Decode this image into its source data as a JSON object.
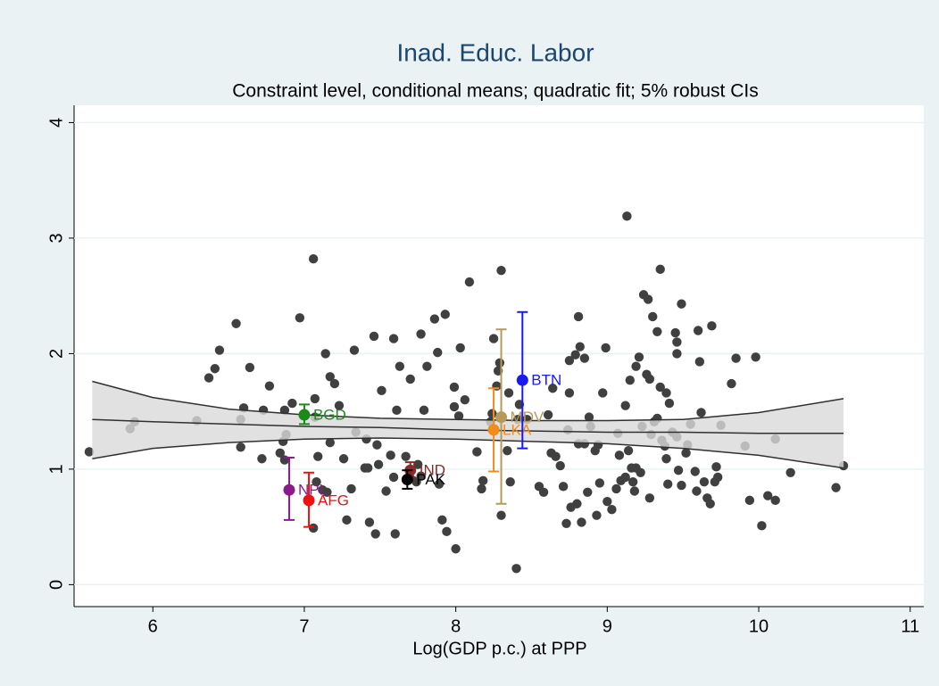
{
  "chart_data": {
    "type": "scatter",
    "title": "Inad. Educ. Labor",
    "subtitle": "Constraint level, conditional means; quadratic fit; 5% robust CIs",
    "xlabel": "Log(GDP p.c.) at PPP",
    "xlim": [
      5.48,
      11.09
    ],
    "ylim": [
      -0.19,
      4.15
    ],
    "xticks": [
      6,
      7,
      8,
      9,
      10,
      11
    ],
    "yticks": [
      0,
      1,
      2,
      3,
      4
    ],
    "grid": true,
    "points": {
      "color": "#404040",
      "x": [
        5.58,
        5.85,
        5.88,
        6.29,
        6.37,
        6.41,
        6.44,
        6.55,
        6.58,
        6.58,
        6.6,
        6.64,
        6.72,
        6.77,
        6.73,
        6.87,
        6.84,
        6.86,
        6.87,
        6.88,
        6.92,
        6.97,
        7.06,
        7.07,
        7.07,
        7.06,
        7.08,
        7.09,
        7.14,
        7.15,
        7.17,
        7.2,
        7.17,
        7.12,
        7.23,
        7.26,
        7.28,
        7.31,
        7.33,
        7.34,
        7.4,
        7.42,
        7.41,
        7.43,
        7.46,
        7.47,
        7.48,
        7.49,
        7.51,
        7.54,
        7.59,
        7.57,
        7.59,
        7.6,
        7.61,
        7.63,
        7.67,
        7.7,
        7.7,
        7.74,
        7.77,
        7.75,
        7.77,
        7.79,
        7.81,
        7.86,
        7.88,
        7.89,
        7.91,
        7.93,
        7.94,
        7.99,
        7.99,
        8.0,
        8.02,
        8.03,
        8.06,
        8.09,
        8.14,
        8.17,
        8.18,
        8.23,
        8.24,
        8.25,
        8.27,
        8.28,
        8.29,
        8.3,
        8.3,
        8.34,
        8.35,
        8.36,
        8.4,
        8.42,
        8.41,
        8.47,
        8.55,
        8.58,
        8.61,
        8.63,
        8.64,
        8.66,
        8.69,
        8.71,
        8.73,
        8.74,
        8.75,
        8.75,
        8.76,
        8.79,
        8.8,
        8.81,
        8.81,
        8.82,
        8.83,
        8.85,
        8.85,
        8.87,
        8.88,
        8.89,
        8.92,
        8.93,
        8.94,
        8.95,
        8.97,
        8.99,
        9.0,
        9.03,
        9.06,
        9.07,
        9.08,
        9.09,
        9.12,
        9.12,
        9.13,
        9.14,
        9.15,
        9.16,
        9.17,
        9.18,
        9.19,
        9.19,
        9.21,
        9.22,
        9.23,
        9.24,
        9.26,
        9.27,
        9.28,
        9.28,
        9.29,
        9.3,
        9.31,
        9.33,
        9.33,
        9.35,
        9.35,
        9.36,
        9.38,
        9.39,
        9.39,
        9.4,
        9.41,
        9.43,
        9.45,
        9.46,
        9.46,
        9.46,
        9.47,
        9.49,
        9.49,
        9.52,
        9.53,
        9.55,
        9.58,
        9.59,
        9.6,
        9.61,
        9.62,
        9.64,
        9.66,
        9.68,
        9.69,
        9.71,
        9.72,
        9.73,
        9.75,
        9.82,
        9.85,
        9.91,
        9.94,
        9.98,
        10.02,
        10.06,
        10.11,
        10.11,
        10.21,
        10.51,
        10.56
      ],
      "y": [
        1.15,
        1.35,
        1.41,
        1.42,
        1.79,
        1.87,
        2.03,
        2.26,
        1.43,
        1.19,
        1.53,
        1.88,
        1.09,
        1.72,
        1.51,
        1.51,
        1.14,
        1.24,
        1.08,
        1.3,
        1.57,
        2.31,
        2.82,
        1.45,
        1.61,
        0.49,
        0.89,
        1.11,
        2.0,
        0.8,
        1.8,
        1.74,
        1.23,
        0.82,
        1.55,
        1.09,
        0.56,
        0.83,
        2.03,
        1.32,
        1.01,
        1.01,
        1.26,
        0.54,
        2.15,
        0.44,
        1.21,
        1.04,
        1.68,
        0.81,
        2.13,
        1.12,
        0.93,
        0.44,
        1.51,
        1.89,
        1.11,
        0.92,
        1.78,
        0.89,
        2.17,
        1.04,
        0.94,
        1.51,
        1.89,
        2.3,
        2.01,
        0.87,
        0.56,
        2.34,
        0.46,
        1.54,
        1.71,
        0.31,
        1.46,
        2.05,
        1.6,
        2.62,
        1.15,
        0.83,
        0.9,
        1.41,
        1.48,
        2.13,
        1.72,
        1.85,
        1.92,
        2.72,
        0.6,
        1.16,
        1.66,
        0.89,
        0.14,
        1.56,
        1.43,
        1.43,
        0.85,
        0.8,
        1.47,
        1.14,
        1.7,
        1.11,
        1.03,
        0.85,
        0.53,
        1.34,
        1.66,
        1.94,
        0.67,
        1.99,
        0.7,
        2.32,
        1.22,
        2.06,
        0.54,
        1.96,
        1.22,
        0.8,
        1.45,
        1.37,
        1.16,
        0.6,
        1.21,
        0.88,
        1.66,
        2.05,
        0.72,
        0.65,
        0.83,
        1.31,
        1.12,
        0.9,
        0.93,
        1.55,
        3.19,
        1.16,
        1.77,
        1.01,
        0.89,
        0.81,
        1.01,
        1.89,
        1.97,
        0.97,
        1.37,
        2.51,
        1.82,
        2.47,
        1.78,
        0.75,
        1.3,
        2.32,
        1.41,
        1.44,
        2.19,
        2.73,
        1.71,
        1.25,
        1.2,
        1.66,
        1.09,
        0.87,
        1.57,
        1.32,
        2.18,
        1.28,
        2.1,
        2.0,
        0.99,
        2.43,
        0.86,
        1.14,
        1.21,
        1.39,
        0.98,
        0.81,
        2.2,
        1.93,
        1.49,
        0.89,
        0.75,
        0.7,
        2.24,
        0.89,
        1.02,
        0.93,
        1.38,
        1.74,
        1.96,
        1.2,
        0.73,
        1.97,
        0.51,
        0.77,
        0.73,
        1.26,
        0.97,
        0.84,
        1.03
      ]
    },
    "fit": {
      "line_color": "#303030",
      "band_color": "#d9d9d9",
      "x": [
        5.6,
        6,
        6.5,
        7,
        7.5,
        8,
        8.5,
        9,
        9.5,
        10,
        10.56
      ],
      "values": [
        1.43,
        1.41,
        1.39,
        1.37,
        1.36,
        1.34,
        1.33,
        1.32,
        1.32,
        1.31,
        1.31
      ],
      "upper": [
        1.76,
        1.62,
        1.52,
        1.47,
        1.44,
        1.43,
        1.42,
        1.42,
        1.43,
        1.49,
        1.61
      ],
      "lower": [
        1.09,
        1.18,
        1.23,
        1.26,
        1.27,
        1.26,
        1.24,
        1.22,
        1.18,
        1.12,
        1.01
      ]
    },
    "countries": [
      {
        "label": "BGD",
        "x": 7.0,
        "y": 1.47,
        "low": 1.39,
        "high": 1.56,
        "color": "#1a8a1a"
      },
      {
        "label": "NPL",
        "x": 6.9,
        "y": 0.82,
        "low": 0.56,
        "high": 1.1,
        "color": "#8b1a8b"
      },
      {
        "label": "AFG",
        "x": 7.03,
        "y": 0.73,
        "low": 0.5,
        "high": 0.97,
        "color": "#ee1111"
      },
      {
        "label": "IND",
        "x": 7.7,
        "y": 0.99,
        "low": 0.93,
        "high": 1.06,
        "color": "#8b2a2a"
      },
      {
        "label": "PAK",
        "x": 7.68,
        "y": 0.91,
        "low": 0.83,
        "high": 0.99,
        "color": "#000000"
      },
      {
        "label": "LKA",
        "x": 8.25,
        "y": 1.34,
        "low": 0.98,
        "high": 1.7,
        "color": "#f28c1a"
      },
      {
        "label": "MDV",
        "x": 8.3,
        "y": 1.45,
        "low": 0.7,
        "high": 2.21,
        "color": "#b59a5a"
      },
      {
        "label": "BTN",
        "x": 8.44,
        "y": 1.77,
        "low": 1.18,
        "high": 2.36,
        "color": "#1a1aee"
      }
    ]
  }
}
